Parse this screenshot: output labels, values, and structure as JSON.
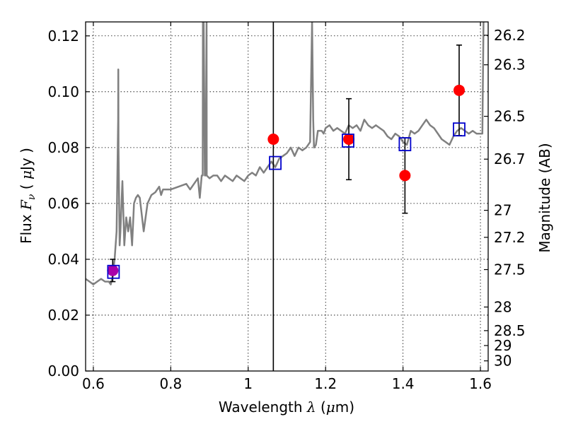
{
  "chart_data": {
    "type": "scatter",
    "xlabel": {
      "prefix": "Wavelength  ",
      "symbol": "λ",
      "suffix": " (",
      "unit_symbol": "μ",
      "unit_rest": "m)"
    },
    "ylabel": {
      "prefix": "Flux  ",
      "symbol": "F",
      "subscript": "ν",
      "suffix": "  ( ",
      "unit_symbol": "μ",
      "unit_rest": "Jy )"
    },
    "y2label": "Magnitude (AB)",
    "xlim": [
      0.58,
      1.62
    ],
    "ylim": [
      0.0,
      0.125
    ],
    "x_ticks": [
      0.6,
      0.8,
      1.0,
      1.2,
      1.4,
      1.6
    ],
    "x_tick_labels": [
      "0.6",
      "0.8",
      "1",
      "1.2",
      "1.4",
      "1.6"
    ],
    "y_ticks": [
      0.0,
      0.02,
      0.04,
      0.06,
      0.08,
      0.1,
      0.12
    ],
    "y_tick_labels": [
      "0.00",
      "0.02",
      "0.04",
      "0.06",
      "0.08",
      "0.10",
      "0.12"
    ],
    "mag_ticks": [
      26.2,
      26.3,
      26.5,
      26.7,
      27.0,
      27.2,
      27.5,
      28.0,
      28.5,
      29.0,
      30.0
    ],
    "mag_tick_labels": [
      "26.2",
      "26.3",
      "26.5",
      "26.7",
      "27",
      "27.2",
      "27.5",
      "28",
      "28.5",
      "29",
      "30"
    ],
    "grid": true,
    "vertical_line_x": 1.065,
    "colors": {
      "model": "#808080",
      "observed": "#ff0000",
      "model_band": "#0000cc",
      "blend": "#aa00aa",
      "errorbar": "#000000"
    },
    "series": [
      {
        "name": "model spectrum",
        "kind": "line",
        "x": [
          0.58,
          0.59,
          0.6,
          0.61,
          0.62,
          0.63,
          0.64,
          0.645,
          0.65,
          0.655,
          0.66,
          0.664,
          0.6645,
          0.665,
          0.668,
          0.67,
          0.675,
          0.68,
          0.685,
          0.69,
          0.695,
          0.7,
          0.705,
          0.71,
          0.715,
          0.72,
          0.73,
          0.74,
          0.75,
          0.76,
          0.77,
          0.775,
          0.78,
          0.8,
          0.82,
          0.84,
          0.85,
          0.86,
          0.87,
          0.875,
          0.88,
          0.8825,
          0.883,
          0.885,
          0.888,
          0.89,
          0.8925,
          0.893,
          0.9,
          0.91,
          0.92,
          0.93,
          0.94,
          0.95,
          0.96,
          0.97,
          0.98,
          0.99,
          1.0,
          1.01,
          1.02,
          1.03,
          1.04,
          1.05,
          1.06,
          1.07,
          1.08,
          1.09,
          1.1,
          1.11,
          1.12,
          1.13,
          1.14,
          1.15,
          1.16,
          1.165,
          1.168,
          1.17,
          1.175,
          1.18,
          1.19,
          1.195,
          1.2,
          1.21,
          1.22,
          1.23,
          1.24,
          1.25,
          1.26,
          1.27,
          1.28,
          1.29,
          1.3,
          1.31,
          1.32,
          1.33,
          1.34,
          1.35,
          1.36,
          1.37,
          1.38,
          1.39,
          1.4,
          1.41,
          1.42,
          1.43,
          1.44,
          1.45,
          1.46,
          1.47,
          1.48,
          1.49,
          1.5,
          1.51,
          1.52,
          1.53,
          1.54,
          1.55,
          1.56,
          1.57,
          1.58,
          1.59,
          1.6,
          1.605,
          1.608,
          1.61
        ],
        "y": [
          0.033,
          0.032,
          0.031,
          0.032,
          0.033,
          0.032,
          0.032,
          0.031,
          0.034,
          0.04,
          0.05,
          0.09,
          0.108,
          0.08,
          0.045,
          0.05,
          0.068,
          0.045,
          0.055,
          0.05,
          0.055,
          0.045,
          0.06,
          0.062,
          0.063,
          0.062,
          0.05,
          0.06,
          0.063,
          0.064,
          0.066,
          0.063,
          0.065,
          0.065,
          0.066,
          0.067,
          0.065,
          0.067,
          0.069,
          0.062,
          0.07,
          0.07,
          0.125,
          0.125,
          0.07,
          0.07,
          0.125,
          0.07,
          0.069,
          0.07,
          0.07,
          0.068,
          0.07,
          0.069,
          0.068,
          0.07,
          0.069,
          0.068,
          0.07,
          0.071,
          0.07,
          0.073,
          0.071,
          0.073,
          0.075,
          0.073,
          0.076,
          0.077,
          0.078,
          0.08,
          0.077,
          0.08,
          0.079,
          0.08,
          0.082,
          0.125,
          0.09,
          0.08,
          0.081,
          0.086,
          0.086,
          0.085,
          0.087,
          0.088,
          0.086,
          0.087,
          0.086,
          0.085,
          0.088,
          0.087,
          0.088,
          0.086,
          0.09,
          0.088,
          0.087,
          0.088,
          0.087,
          0.086,
          0.084,
          0.083,
          0.085,
          0.084,
          0.082,
          0.081,
          0.086,
          0.085,
          0.086,
          0.088,
          0.09,
          0.088,
          0.087,
          0.085,
          0.083,
          0.082,
          0.081,
          0.084,
          0.086,
          0.087,
          0.086,
          0.085,
          0.086,
          0.085,
          0.085,
          0.085,
          0.125,
          0.125
        ]
      },
      {
        "name": "observed photometry",
        "kind": "points-with-errors",
        "x": [
          0.65,
          1.065,
          1.26,
          1.405,
          1.545
        ],
        "y": [
          0.036,
          0.083,
          0.083,
          0.07,
          0.1005
        ],
        "yerr": [
          0.004,
          null,
          0.0145,
          0.0135,
          0.0162
        ]
      },
      {
        "name": "model band fluxes",
        "kind": "open-squares",
        "x": [
          0.652,
          1.07,
          1.258,
          1.405,
          1.545
        ],
        "y": [
          0.0355,
          0.0745,
          0.0825,
          0.0812,
          0.0865
        ]
      }
    ]
  }
}
